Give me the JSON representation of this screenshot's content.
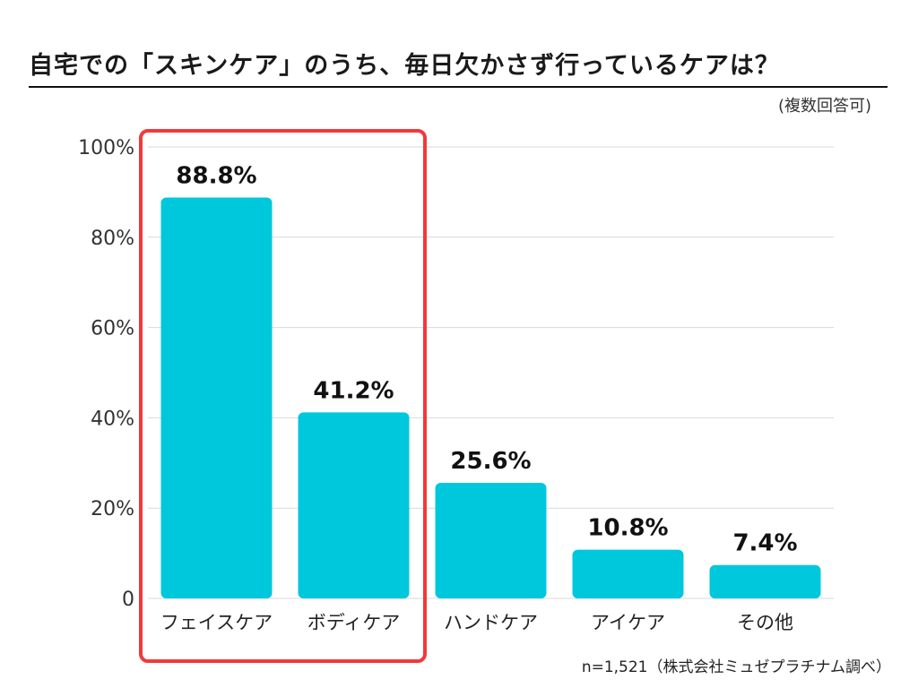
{
  "chart_data": {
    "type": "bar",
    "title": "自宅での「スキンケア」のうち、毎日欠かさず行っているケアは？",
    "subtitle": "(複数回答可)",
    "categories": [
      "フェイスケア",
      "ボディケア",
      "ハンドケア",
      "アイケア",
      "その他"
    ],
    "values": [
      88.8,
      41.2,
      25.6,
      10.8,
      7.4
    ],
    "value_labels": [
      "88.8%",
      "41.2%",
      "25.6%",
      "10.8%",
      "7.4%"
    ],
    "ylim": [
      0,
      100
    ],
    "yticks": [
      0,
      20,
      40,
      60,
      80,
      100
    ],
    "ytick_labels": [
      "0",
      "20%",
      "40%",
      "60%",
      "80%",
      "100%"
    ],
    "xlabel": "",
    "ylabel": "",
    "grid": true,
    "highlight": {
      "categories": [
        "フェイスケア",
        "ボディケア"
      ],
      "color": "#f2393a"
    },
    "bar_color": "#00c8dc",
    "footnote": "n=1,521（株式会社ミュゼプラチナム調べ）"
  }
}
